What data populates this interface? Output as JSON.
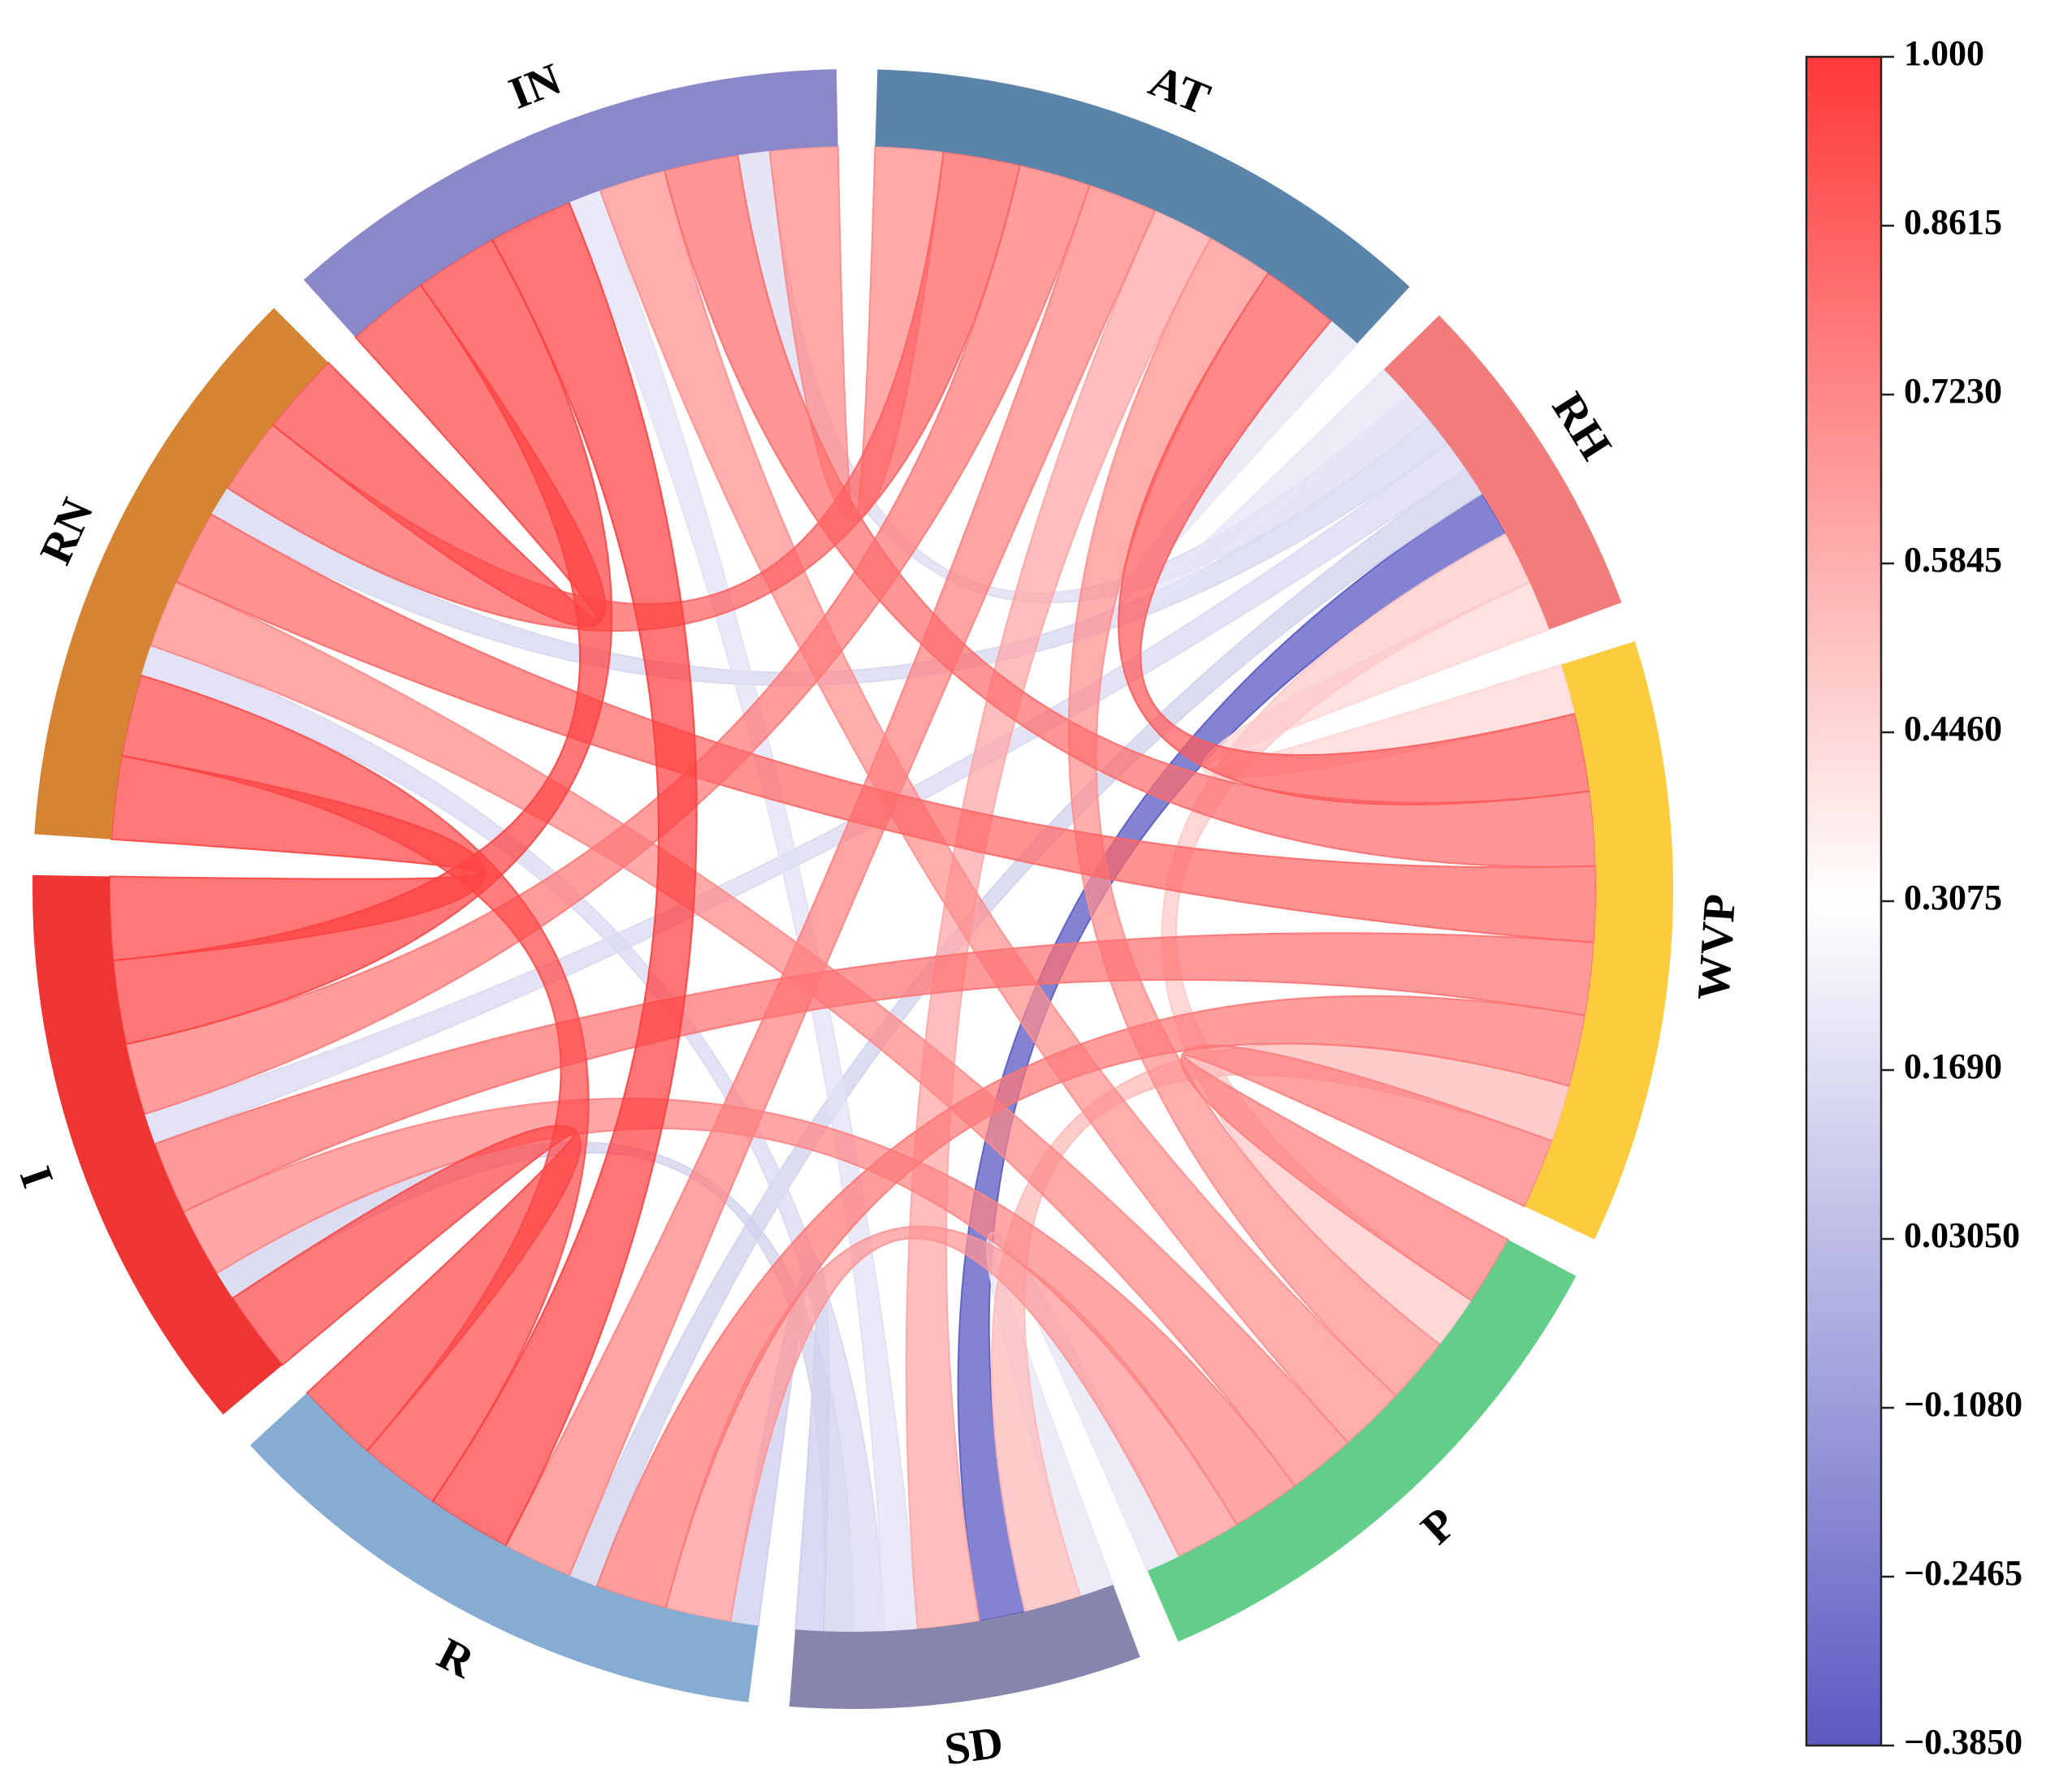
{
  "chart_data": {
    "type": "chord",
    "title": "",
    "segments": [
      {
        "name": "AT",
        "color": "#5b84ab"
      },
      {
        "name": "RH",
        "color": "#f27b7b"
      },
      {
        "name": "WVP",
        "color": "#fccb3e"
      },
      {
        "name": "P",
        "color": "#62ce8a"
      },
      {
        "name": "SD",
        "color": "#8686ad"
      },
      {
        "name": "R",
        "color": "#86acd4"
      },
      {
        "name": "I",
        "color": "#ef3434"
      },
      {
        "name": "RN",
        "color": "#d48432"
      },
      {
        "name": "IN",
        "color": "#8b88c9"
      }
    ],
    "links": [
      {
        "source": "AT",
        "target": "IN",
        "value": 0.72
      },
      {
        "source": "AT",
        "target": "RN",
        "value": 0.86
      },
      {
        "source": "AT",
        "target": "I",
        "value": 0.78
      },
      {
        "source": "AT",
        "target": "R",
        "value": 0.75
      },
      {
        "source": "AT",
        "target": "SD",
        "value": 0.62
      },
      {
        "source": "AT",
        "target": "P",
        "value": 0.7
      },
      {
        "source": "AT",
        "target": "WVP",
        "value": 0.88
      },
      {
        "source": "AT",
        "target": "RH",
        "value": 0.2
      },
      {
        "source": "RH",
        "target": "SD",
        "value": -0.385
      },
      {
        "source": "RH",
        "target": "WVP",
        "value": 0.45
      },
      {
        "source": "RH",
        "target": "P",
        "value": 0.5
      },
      {
        "source": "RH",
        "target": "R",
        "value": 0.12
      },
      {
        "source": "RH",
        "target": "I",
        "value": 0.15
      },
      {
        "source": "RH",
        "target": "RN",
        "value": 0.14
      },
      {
        "source": "RH",
        "target": "IN",
        "value": 0.16
      },
      {
        "source": "WVP",
        "target": "IN",
        "value": 0.82
      },
      {
        "source": "WVP",
        "target": "RN",
        "value": 0.84
      },
      {
        "source": "WVP",
        "target": "I",
        "value": 0.8
      },
      {
        "source": "WVP",
        "target": "R",
        "value": 0.78
      },
      {
        "source": "WVP",
        "target": "P",
        "value": 0.76
      },
      {
        "source": "WVP",
        "target": "SD",
        "value": 0.55
      },
      {
        "source": "P",
        "target": "IN",
        "value": 0.7
      },
      {
        "source": "P",
        "target": "RN",
        "value": 0.72
      },
      {
        "source": "P",
        "target": "I",
        "value": 0.74
      },
      {
        "source": "P",
        "target": "R",
        "value": 0.68
      },
      {
        "source": "P",
        "target": "SD",
        "value": 0.2
      },
      {
        "source": "SD",
        "target": "R",
        "value": 0.1
      },
      {
        "source": "SD",
        "target": "I",
        "value": 0.12
      },
      {
        "source": "SD",
        "target": "IN",
        "value": 0.18
      },
      {
        "source": "SD",
        "target": "RN",
        "value": 0.15
      },
      {
        "source": "R",
        "target": "I",
        "value": 0.95
      },
      {
        "source": "R",
        "target": "RN",
        "value": 0.94
      },
      {
        "source": "R",
        "target": "IN",
        "value": 0.98
      },
      {
        "source": "I",
        "target": "RN",
        "value": 0.96
      },
      {
        "source": "I",
        "target": "IN",
        "value": 0.97
      },
      {
        "source": "RN",
        "target": "IN",
        "value": 0.95
      }
    ],
    "colorbar": {
      "min": -0.385,
      "max": 1.0,
      "ticks": [
        "1.000",
        "0.8615",
        "0.7230",
        "0.5845",
        "0.4460",
        "0.3075",
        "0.1690",
        "0.03050",
        "−0.1080",
        "−0.2465",
        "−0.3850"
      ],
      "tick_values": [
        1.0,
        0.8615,
        0.723,
        0.5845,
        0.446,
        0.3075,
        0.169,
        0.0305,
        -0.108,
        -0.2465,
        -0.385
      ],
      "stops": [
        {
          "value": -0.385,
          "color": "#5a5ac2"
        },
        {
          "value": 0.3075,
          "color": "#ffffff"
        },
        {
          "value": 1.0,
          "color": "#ff3838"
        }
      ]
    }
  }
}
